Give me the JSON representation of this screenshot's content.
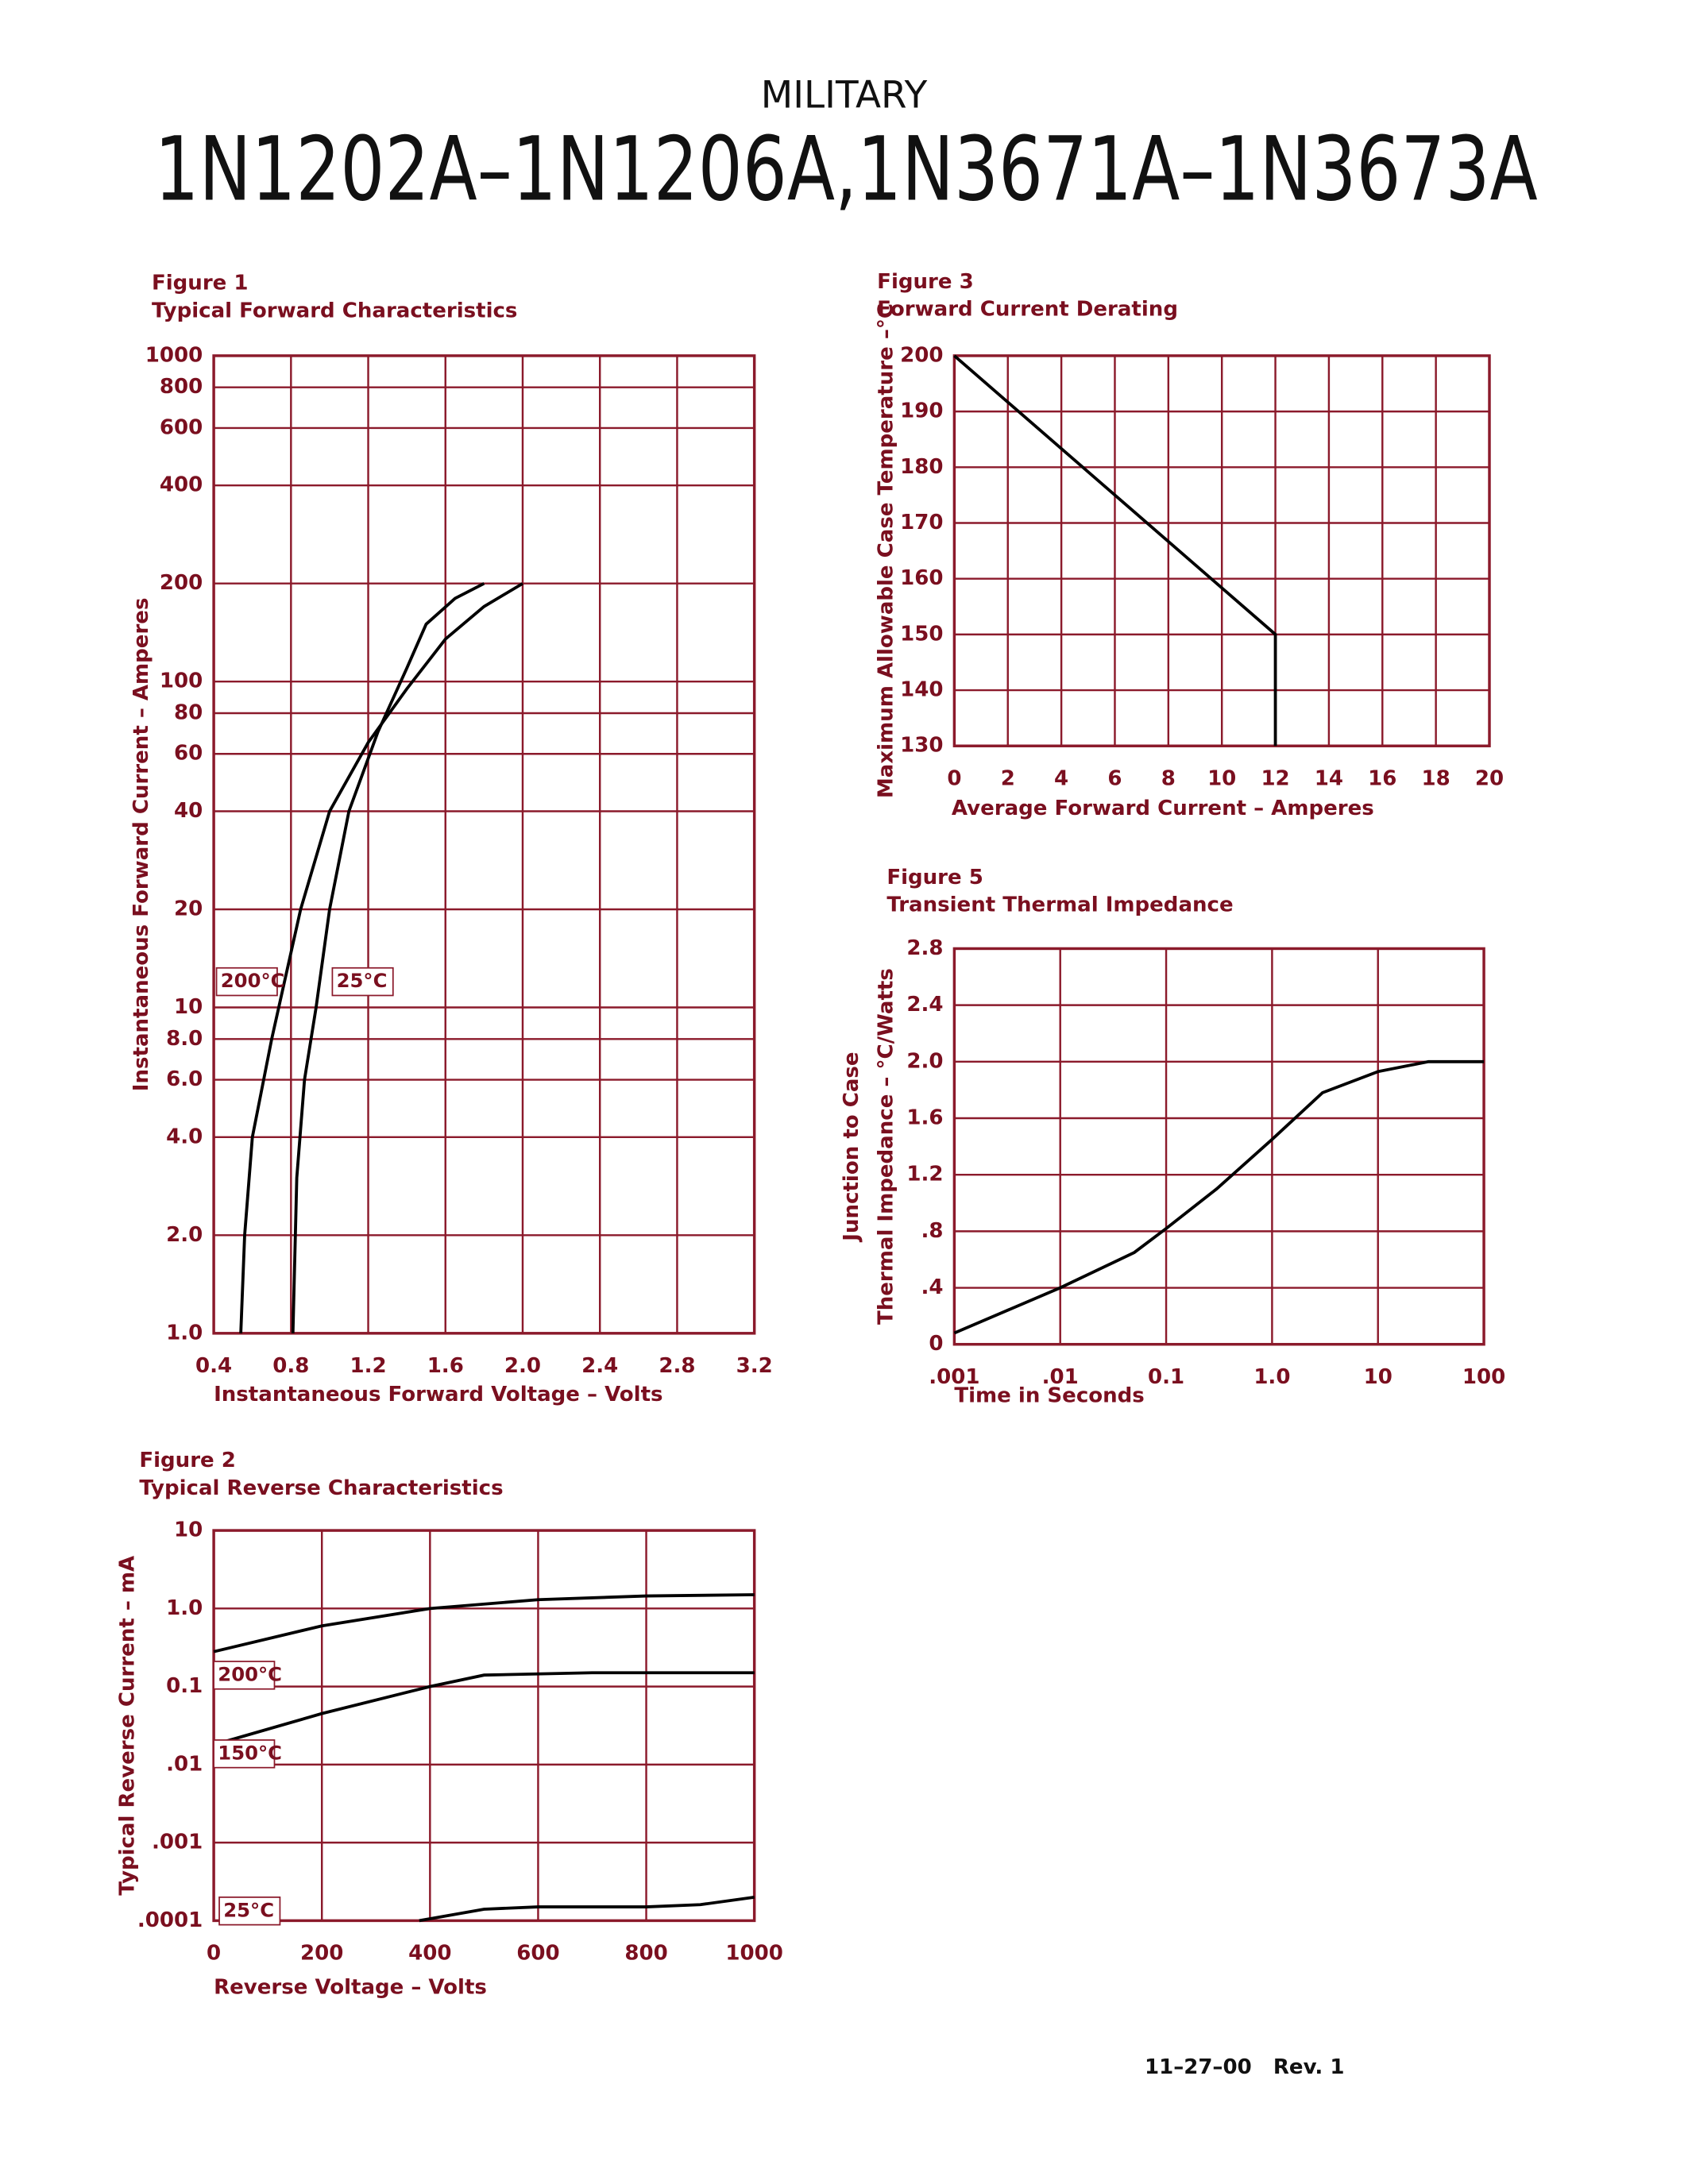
{
  "header": {
    "kicker": "MILITARY",
    "title": "1N1202A–1N1206A,1N3671A–1N3673A"
  },
  "footer": "11–27–00   Rev. 1",
  "chart_data": [
    {
      "type": "line",
      "figure": "Figure 1",
      "title": "Typical Forward Characteristics",
      "x_label": "Instantaneous Forward Voltage – Volts",
      "y_label": "Instantaneous Forward Current – Amperes",
      "y_log": true,
      "grid": true,
      "grid_color": "#8b1a2b",
      "xlim": [
        0.4,
        3.2
      ],
      "xticks": [
        0.4,
        0.8,
        1.2,
        1.6,
        {
          "value": 2,
          "label": "2.0"
        },
        2.4,
        2.8,
        3.2
      ],
      "ylim": [
        1,
        1000
      ],
      "yticks": [
        {
          "value": 1,
          "label": "1.0"
        },
        {
          "value": 2,
          "label": "2.0"
        },
        {
          "value": 4,
          "label": "4.0"
        },
        {
          "value": 6,
          "label": "6.0"
        },
        {
          "value": 8,
          "label": "8.0"
        },
        10,
        20,
        40,
        60,
        80,
        100,
        200,
        400,
        600,
        800,
        1000
      ],
      "series": [
        {
          "name": "200°C",
          "color": "#000000",
          "x": [
            0.54,
            0.56,
            0.6,
            0.7,
            0.85,
            1.0,
            1.2,
            1.4,
            1.6,
            1.8,
            2.0
          ],
          "values": [
            1,
            2,
            4,
            8,
            20,
            40,
            65,
            95,
            135,
            170,
            200
          ]
        },
        {
          "name": "25°C",
          "color": "#000000",
          "x": [
            0.81,
            0.83,
            0.87,
            0.93,
            1.0,
            1.1,
            1.25,
            1.4,
            1.5,
            1.65,
            1.8
          ],
          "values": [
            1,
            3,
            6,
            10,
            20,
            40,
            70,
            110,
            150,
            180,
            200
          ]
        }
      ]
    },
    {
      "type": "line",
      "figure": "Figure 2",
      "title": "Typical Reverse Characteristics",
      "x_label": "Reverse Voltage – Volts",
      "y_label": "Typical Reverse Current – mA",
      "y_log": true,
      "grid": true,
      "grid_color": "#8b1a2b",
      "xlim": [
        0,
        1000
      ],
      "xticks": [
        0,
        200,
        400,
        600,
        800,
        1000
      ],
      "ylim": [
        0.0001,
        10
      ],
      "yticks": [
        {
          "value": 0.0001,
          "label": ".0001"
        },
        {
          "value": 0.001,
          "label": ".001"
        },
        {
          "value": 0.01,
          "label": ".01"
        },
        0.1,
        {
          "value": 1,
          "label": "1.0"
        },
        10
      ],
      "series": [
        {
          "name": "200°C",
          "color": "#000000",
          "x": [
            0,
            200,
            400,
            600,
            800,
            1000
          ],
          "values": [
            0.28,
            0.6,
            1.0,
            1.3,
            1.45,
            1.5
          ]
        },
        {
          "name": "150°C",
          "color": "#000000",
          "x": [
            0,
            200,
            400,
            500,
            700,
            1000
          ],
          "values": [
            0.018,
            0.045,
            0.1,
            0.14,
            0.15,
            0.15
          ]
        },
        {
          "name": "25°C",
          "color": "#000000",
          "x": [
            380,
            500,
            600,
            800,
            900,
            1000
          ],
          "values": [
            0.0001,
            0.00014,
            0.00015,
            0.00015,
            0.00016,
            0.0002
          ]
        }
      ]
    },
    {
      "type": "line",
      "figure": "Figure 3",
      "title": "Forward Current Derating",
      "x_label": "Average Forward Current – Amperes",
      "y_label": "Maximum Allowable Case Temperature –°C",
      "grid": true,
      "grid_color": "#8b1a2b",
      "xlim": [
        0,
        20
      ],
      "xticks": [
        0,
        2,
        4,
        6,
        8,
        10,
        12,
        14,
        16,
        18,
        20
      ],
      "ylim": [
        130,
        200
      ],
      "yticks": [
        130,
        140,
        150,
        160,
        170,
        180,
        190,
        200
      ],
      "series": [
        {
          "color": "#000000",
          "x": [
            0,
            12,
            12
          ],
          "values": [
            200,
            150,
            130
          ]
        }
      ]
    },
    {
      "type": "line",
      "figure": "Figure 5",
      "title": "Transient Thermal Impedance",
      "x_label": "Time in Seconds",
      "y_label": [
        "Junction to Case",
        "Thermal Impedance – °C/Watts"
      ],
      "x_log": true,
      "grid": true,
      "grid_color": "#8b1a2b",
      "xlim": [
        0.001,
        100
      ],
      "xticks": [
        {
          "value": 0.001,
          "label": ".001"
        },
        {
          "value": 0.01,
          "label": ".01"
        },
        0.1,
        {
          "value": 1,
          "label": "1.0"
        },
        10,
        100
      ],
      "ylim": [
        0,
        2.8
      ],
      "yticks": [
        0,
        {
          "value": 0.4,
          "label": ".4"
        },
        {
          "value": 0.8,
          "label": ".8"
        },
        1.2,
        1.6,
        {
          "value": 2,
          "label": "2.0"
        },
        2.4,
        2.8
      ],
      "series": [
        {
          "color": "#000000",
          "x": [
            0.001,
            0.01,
            0.05,
            0.1,
            0.3,
            1,
            3,
            10,
            30,
            100
          ],
          "values": [
            0.08,
            0.4,
            0.65,
            0.82,
            1.1,
            1.45,
            1.78,
            1.93,
            2.0,
            2.0
          ]
        }
      ]
    }
  ]
}
